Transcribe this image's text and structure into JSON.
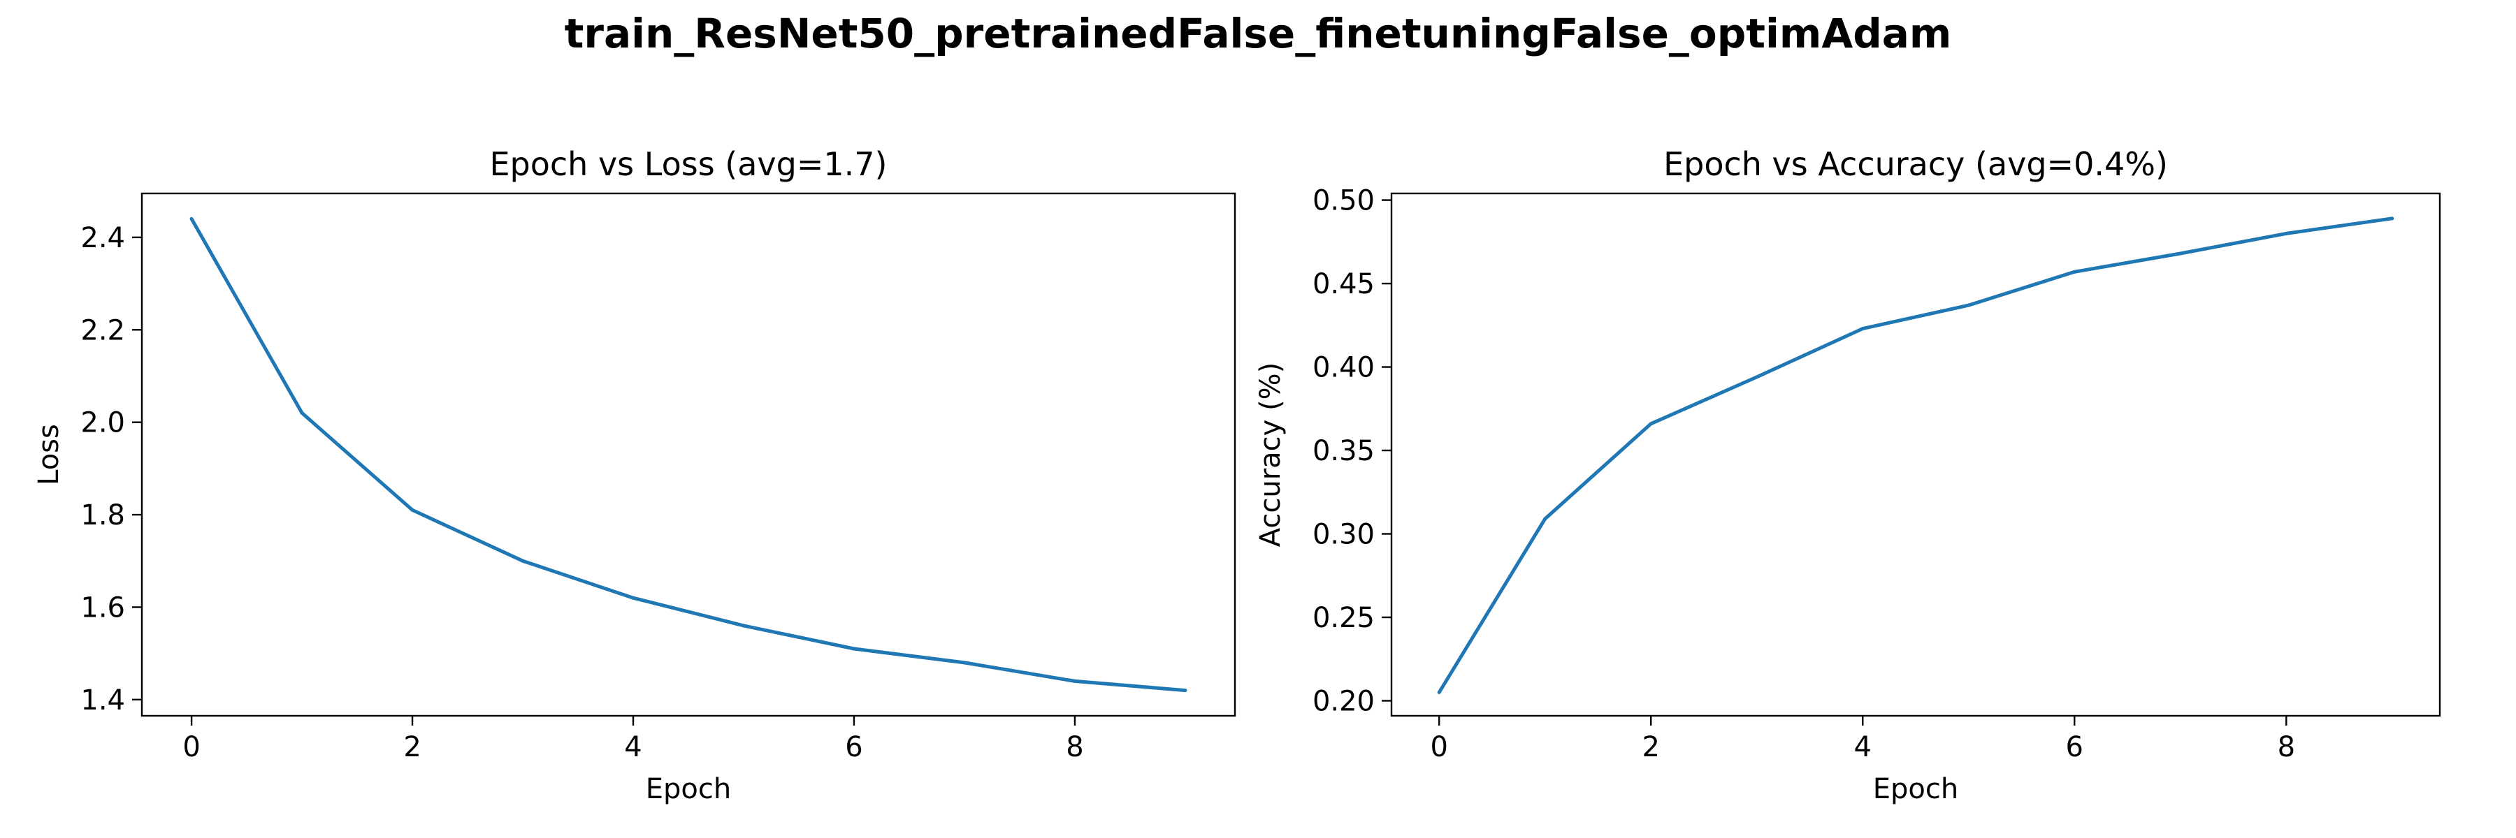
{
  "figure": {
    "suptitle": "train_ResNet50_pretrainedFalse_finetuningFalse_optimAdam"
  },
  "chart_data": [
    {
      "type": "line",
      "title": "Epoch vs Loss (avg=1.7)",
      "xlabel": "Epoch",
      "ylabel": "Loss",
      "xlim": [
        -0.45,
        9.45
      ],
      "ylim": [
        1.365,
        2.495
      ],
      "xticks": [
        0,
        2,
        4,
        6,
        8
      ],
      "yticks": [
        1.4,
        1.6,
        1.8,
        2.0,
        2.2,
        2.4
      ],
      "xtick_labels": [
        "0",
        "2",
        "4",
        "6",
        "8"
      ],
      "ytick_labels": [
        "1.4",
        "1.6",
        "1.8",
        "2.0",
        "2.2",
        "2.4"
      ],
      "grid": false,
      "line_color": "#1f77b4",
      "x": [
        0,
        1,
        2,
        3,
        4,
        5,
        6,
        7,
        8,
        9
      ],
      "y": [
        2.44,
        2.02,
        1.81,
        1.7,
        1.62,
        1.56,
        1.51,
        1.48,
        1.44,
        1.42
      ]
    },
    {
      "type": "line",
      "title": "Epoch vs Accuracy (avg=0.4%)",
      "xlabel": "Epoch",
      "ylabel": "Accuracy (%)",
      "xlim": [
        -0.45,
        9.45
      ],
      "ylim": [
        0.191,
        0.504
      ],
      "xticks": [
        0,
        2,
        4,
        6,
        8
      ],
      "yticks": [
        0.2,
        0.25,
        0.3,
        0.35,
        0.4,
        0.45,
        0.5
      ],
      "xtick_labels": [
        "0",
        "2",
        "4",
        "6",
        "8"
      ],
      "ytick_labels": [
        "0.20",
        "0.25",
        "0.30",
        "0.35",
        "0.40",
        "0.45",
        "0.50"
      ],
      "grid": false,
      "line_color": "#1f77b4",
      "x": [
        0,
        1,
        2,
        3,
        4,
        5,
        6,
        7,
        8,
        9
      ],
      "y": [
        0.205,
        0.309,
        0.366,
        0.394,
        0.423,
        0.437,
        0.457,
        0.468,
        0.48,
        0.489
      ]
    }
  ]
}
